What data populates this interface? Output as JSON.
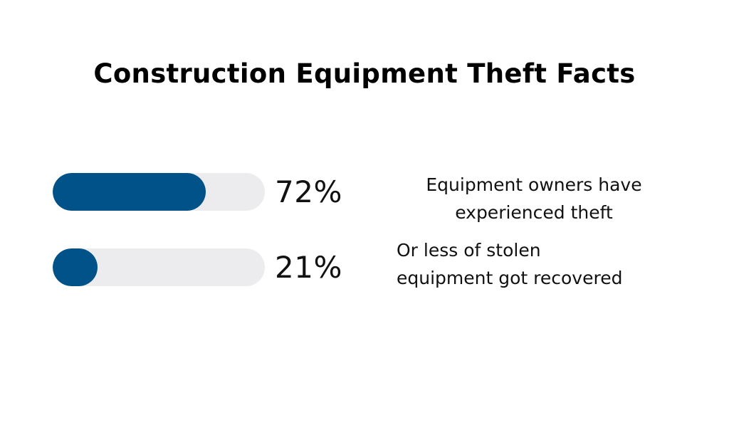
{
  "title": "Construction Equipment Theft Facts",
  "colors": {
    "bar_fill": "#02528a",
    "bar_track": "#ececee",
    "text": "#111111"
  },
  "chart_data": {
    "type": "bar",
    "title": "Construction Equipment Theft Facts",
    "unit": "%",
    "xlim": [
      0,
      100
    ],
    "orientation": "horizontal",
    "bars": [
      {
        "value": 72,
        "value_label": "72%",
        "description_lines": [
          "Equipment owners have",
          "experienced theft"
        ]
      },
      {
        "value": 21,
        "value_label": "21%",
        "description_lines": [
          "Or less of stolen",
          "equipment got recovered"
        ]
      }
    ]
  }
}
